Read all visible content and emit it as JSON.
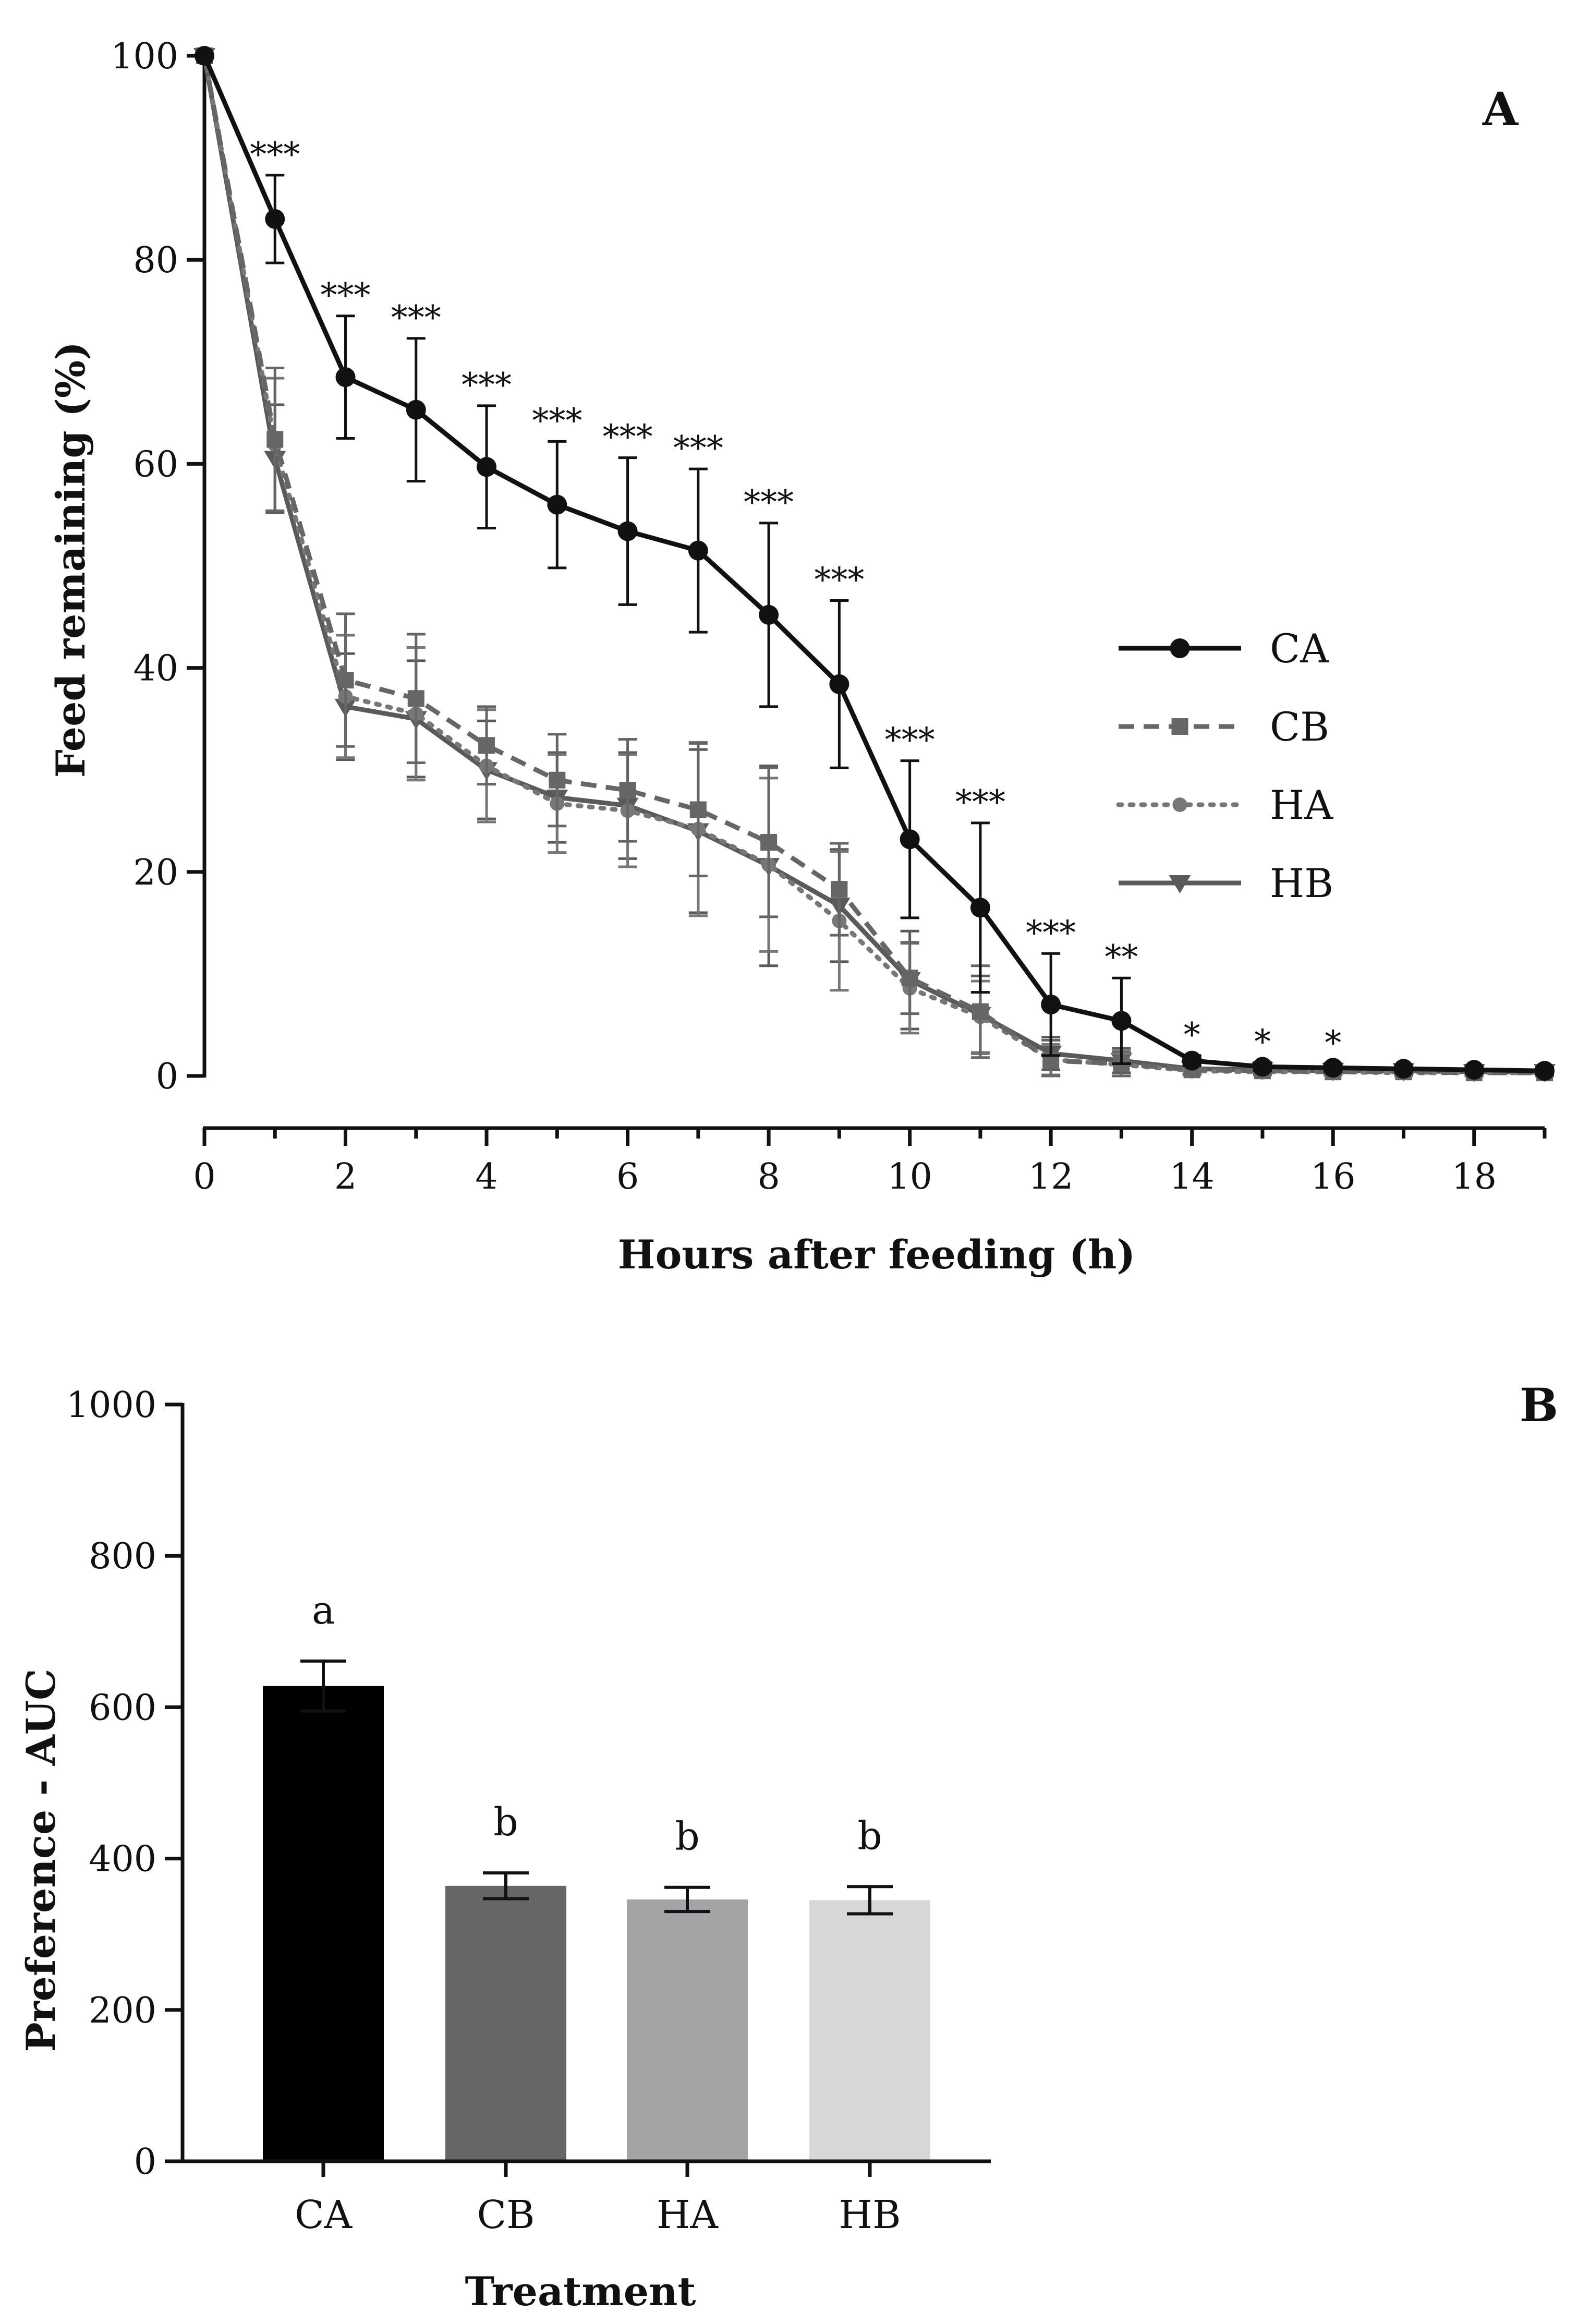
{
  "chart_data": [
    {
      "type": "line",
      "panel_label": "A",
      "xlabel": "Hours after feeding (h)",
      "ylabel": "Feed remaining (%)",
      "xlim": [
        0,
        19
      ],
      "ylim": [
        0,
        100
      ],
      "xticks": [
        0,
        2,
        4,
        6,
        8,
        10,
        12,
        14,
        16,
        18
      ],
      "yticks": [
        0,
        20,
        40,
        60,
        80,
        100
      ],
      "grid": false,
      "legend": "right",
      "x": [
        0,
        1,
        2,
        3,
        4,
        5,
        6,
        7,
        8,
        9,
        10,
        11,
        12,
        13,
        14,
        15,
        16,
        17,
        18,
        19
      ],
      "series": [
        {
          "name": "CA",
          "color": "#111111",
          "marker": "circle",
          "dash": "solid",
          "values": [
            100,
            84,
            68.5,
            65.3,
            59.7,
            56,
            53.4,
            51.5,
            45.2,
            38.4,
            23.2,
            16.5,
            7,
            5.4,
            1.5,
            0.9,
            0.8,
            0.7,
            0.6,
            0.5
          ],
          "errors": [
            0,
            4.3,
            6,
            7,
            6,
            6.2,
            7.2,
            8,
            9,
            8.2,
            7.7,
            8.3,
            5,
            4.2,
            0.5,
            0.4,
            0.4,
            0.3,
            0.3,
            0.3
          ]
        },
        {
          "name": "CB",
          "color": "#666666",
          "marker": "square",
          "dash": "dashed",
          "values": [
            100,
            62.4,
            38.8,
            37,
            32.4,
            29,
            28,
            26.1,
            22.9,
            18.3,
            9.6,
            6.3,
            1.5,
            1.2,
            0.6,
            0.5,
            0.4,
            0.4,
            0.3,
            0.3
          ],
          "errors": [
            0,
            7,
            6.5,
            6.3,
            3.8,
            4.5,
            5,
            6.5,
            7.3,
            4.5,
            3.5,
            4.5,
            2,
            1.2,
            0.4,
            0.3,
            0.3,
            0.3,
            0.3,
            0.3
          ]
        },
        {
          "name": "HA",
          "color": "#777777",
          "marker": "circle-small",
          "dash": "dotted",
          "values": [
            100,
            61.9,
            37.2,
            35.5,
            30.4,
            26.7,
            26,
            24.2,
            20.7,
            15.2,
            8.6,
            5.8,
            1.6,
            1.1,
            0.5,
            0.4,
            0.4,
            0.3,
            0.3,
            0.3
          ],
          "errors": [
            0,
            6.5,
            6,
            6.5,
            5.5,
            4.8,
            5.5,
            8.5,
            8.5,
            6.8,
            4.4,
            3.5,
            1.5,
            1.1,
            0.4,
            0.3,
            0.3,
            0.3,
            0.3,
            0.3
          ]
        },
        {
          "name": "HB",
          "color": "#5a5a5a",
          "marker": "triangle-down",
          "dash": "solid",
          "values": [
            100,
            60.5,
            36.2,
            35,
            30,
            27.3,
            26.5,
            24,
            20.6,
            16.7,
            9.4,
            6,
            2.2,
            1.5,
            0.7,
            0.6,
            0.5,
            0.5,
            0.4,
            0.4
          ],
          "errors": [
            0,
            5.3,
            5.2,
            5.7,
            4.8,
            4.4,
            5.2,
            8,
            9.8,
            5.5,
            4.8,
            3.8,
            1.6,
            1.2,
            0.5,
            0.4,
            0.4,
            0.4,
            0.3,
            0.3
          ]
        }
      ],
      "annotations": [
        {
          "x": 1,
          "text": "***"
        },
        {
          "x": 2,
          "text": "***"
        },
        {
          "x": 3,
          "text": "***"
        },
        {
          "x": 4,
          "text": "***"
        },
        {
          "x": 5,
          "text": "***"
        },
        {
          "x": 6,
          "text": "***"
        },
        {
          "x": 7,
          "text": "***"
        },
        {
          "x": 8,
          "text": "***"
        },
        {
          "x": 9,
          "text": "***"
        },
        {
          "x": 10,
          "text": "***"
        },
        {
          "x": 11,
          "text": "***"
        },
        {
          "x": 12,
          "text": "***"
        },
        {
          "x": 13,
          "text": "**"
        },
        {
          "x": 14,
          "text": "*"
        },
        {
          "x": 15,
          "text": "*"
        },
        {
          "x": 16,
          "text": "*"
        }
      ]
    },
    {
      "type": "bar",
      "panel_label": "B",
      "xlabel": "Treatment",
      "ylabel": "Preference - AUC",
      "ylim": [
        0,
        1000
      ],
      "yticks": [
        0,
        200,
        400,
        600,
        800,
        1000
      ],
      "grid": false,
      "categories": [
        "CA",
        "CB",
        "HA",
        "HB"
      ],
      "values": [
        628,
        364,
        346,
        345
      ],
      "errors": [
        33,
        17,
        16,
        18
      ],
      "colors": [
        "#000000",
        "#666666",
        "#a4a4a6",
        "#d7d7d7"
      ],
      "letters": [
        "a",
        "b",
        "b",
        "b"
      ]
    }
  ]
}
